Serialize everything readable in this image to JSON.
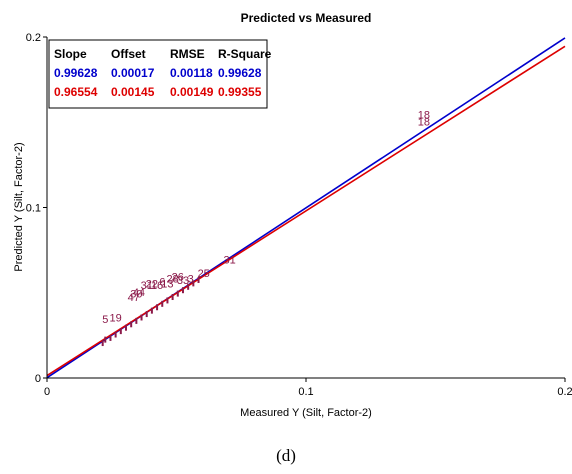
{
  "caption": "(d)",
  "chart_data": {
    "type": "scatter",
    "title": "Predicted vs Measured",
    "xlabel": "Measured Y (Silt, Factor-2)",
    "ylabel": "Predicted Y (Silt, Factor-2)",
    "xlim": [
      0,
      0.2
    ],
    "ylim": [
      0,
      0.2
    ],
    "x_ticks": [
      "0",
      "0.1",
      "0.2"
    ],
    "y_ticks": [
      "0",
      "0.1",
      "0.2"
    ],
    "grid": false,
    "legend": {
      "placement": "top-left",
      "headers": [
        "Slope",
        "Offset",
        "RMSE",
        "R-Square"
      ],
      "rows": [
        {
          "values": [
            "0.99628",
            "0.00017",
            "0.00118",
            "0.99628"
          ],
          "color": "#0000cc"
        },
        {
          "values": [
            "0.96554",
            "0.00145",
            "0.00149",
            "0.99355"
          ],
          "color": "#dd0000"
        }
      ]
    },
    "series": [
      {
        "color": "#0000cc",
        "line": {
          "slope": 0.99628,
          "offset": 0.00017
        }
      },
      {
        "color": "#dd0000",
        "line": {
          "slope": 0.96554,
          "offset": 0.00145
        }
      }
    ],
    "point_color": "#8b1a4a",
    "points": [
      {
        "x": 0.0215,
        "y": 0.0205,
        "label": ""
      },
      {
        "x": 0.0225,
        "y": 0.0225,
        "label": ""
      },
      {
        "x": 0.0245,
        "y": 0.0235,
        "label": ""
      },
      {
        "x": 0.0265,
        "y": 0.0255,
        "label": ""
      },
      {
        "x": 0.0285,
        "y": 0.0275,
        "label": ""
      },
      {
        "x": 0.0305,
        "y": 0.0295,
        "label": ""
      },
      {
        "x": 0.0325,
        "y": 0.0315,
        "label": ""
      },
      {
        "x": 0.0345,
        "y": 0.0335,
        "label": ""
      },
      {
        "x": 0.0365,
        "y": 0.0355,
        "label": ""
      },
      {
        "x": 0.0385,
        "y": 0.0375,
        "label": ""
      },
      {
        "x": 0.0405,
        "y": 0.0395,
        "label": ""
      },
      {
        "x": 0.0425,
        "y": 0.0415,
        "label": ""
      },
      {
        "x": 0.0445,
        "y": 0.0435,
        "label": ""
      },
      {
        "x": 0.0465,
        "y": 0.0455,
        "label": ""
      },
      {
        "x": 0.0485,
        "y": 0.0475,
        "label": ""
      },
      {
        "x": 0.0505,
        "y": 0.0495,
        "label": ""
      },
      {
        "x": 0.0525,
        "y": 0.0515,
        "label": ""
      },
      {
        "x": 0.0545,
        "y": 0.0535,
        "label": ""
      },
      {
        "x": 0.0565,
        "y": 0.0555,
        "label": ""
      },
      {
        "x": 0.0585,
        "y": 0.0575,
        "label": ""
      },
      {
        "x": 0.0225,
        "y": 0.0345,
        "label": "5"
      },
      {
        "x": 0.0265,
        "y": 0.0355,
        "label": "19"
      },
      {
        "x": 0.0335,
        "y": 0.0475,
        "label": "47"
      },
      {
        "x": 0.0345,
        "y": 0.0495,
        "label": "30"
      },
      {
        "x": 0.0355,
        "y": 0.0505,
        "label": "44"
      },
      {
        "x": 0.0385,
        "y": 0.0545,
        "label": "31"
      },
      {
        "x": 0.0405,
        "y": 0.0555,
        "label": "22"
      },
      {
        "x": 0.0425,
        "y": 0.0545,
        "label": "16"
      },
      {
        "x": 0.0445,
        "y": 0.0565,
        "label": "6"
      },
      {
        "x": 0.0465,
        "y": 0.0555,
        "label": "13"
      },
      {
        "x": 0.0485,
        "y": 0.0585,
        "label": "28"
      },
      {
        "x": 0.0505,
        "y": 0.0595,
        "label": "26"
      },
      {
        "x": 0.0525,
        "y": 0.0575,
        "label": "33"
      },
      {
        "x": 0.0555,
        "y": 0.0585,
        "label": "3"
      },
      {
        "x": 0.0605,
        "y": 0.0615,
        "label": "25"
      },
      {
        "x": 0.0705,
        "y": 0.0695,
        "label": "31"
      },
      {
        "x": 0.1455,
        "y": 0.1545,
        "label": "18"
      },
      {
        "x": 0.1455,
        "y": 0.1505,
        "label": "18"
      }
    ]
  }
}
